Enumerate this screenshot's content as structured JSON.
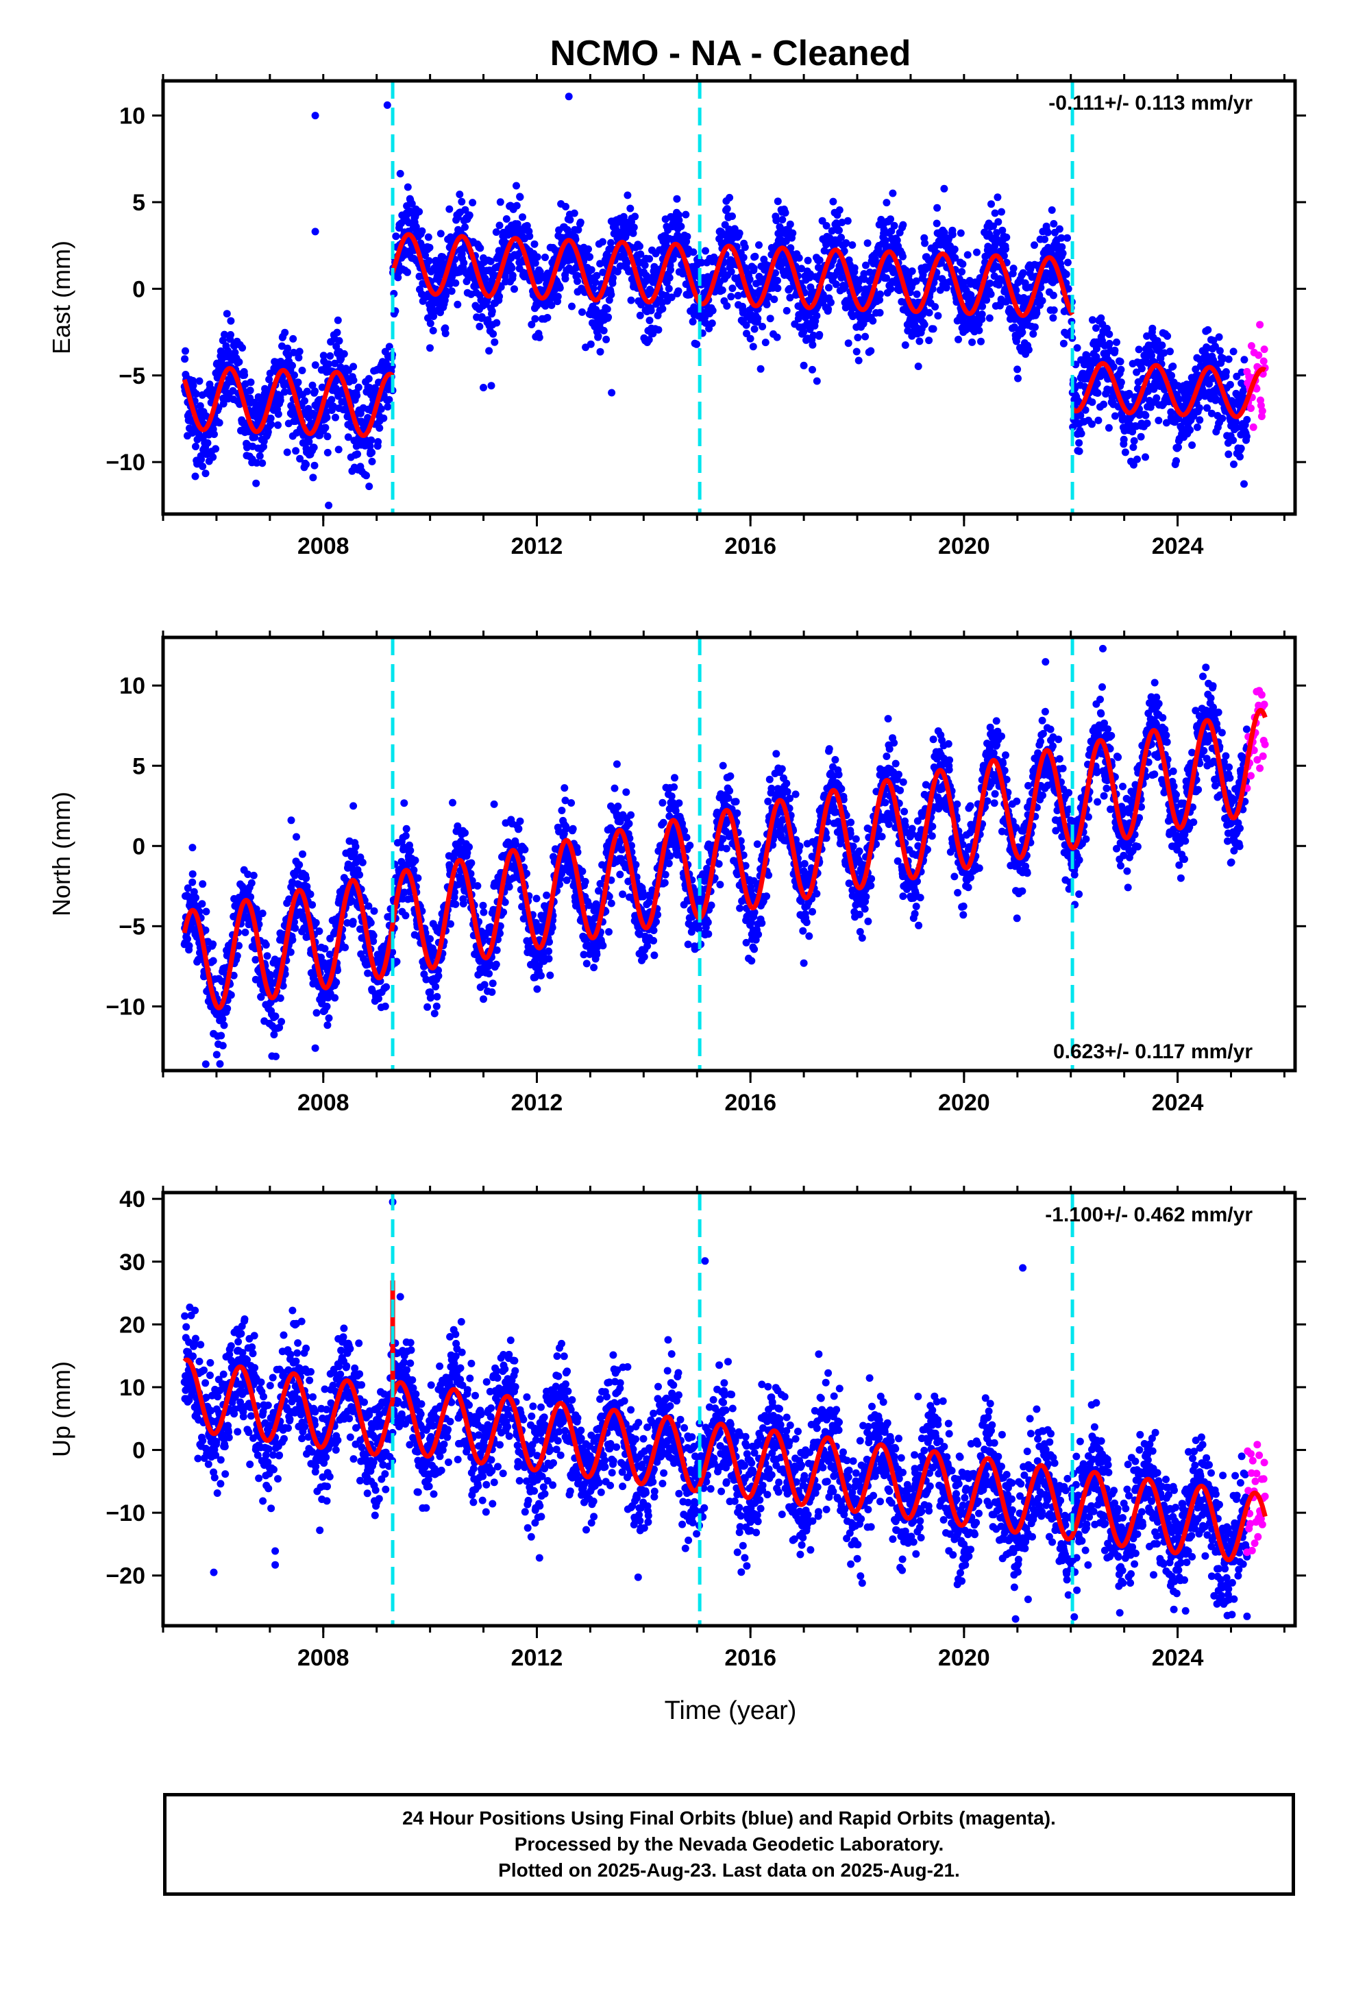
{
  "title": "NCMO  - NA - Cleaned",
  "x_axis_label": "Time (year)",
  "footer": {
    "line1": "24 Hour Positions Using Final Orbits (blue) and Rapid Orbits (magenta).",
    "line2": "Processed by the Nevada Geodetic Laboratory.",
    "line3": "Plotted on 2025-Aug-23. Last data on 2025-Aug-21."
  },
  "colors": {
    "final_orbits": "#0000ff",
    "rapid_orbits": "#ff00ff",
    "model_fit": "#ff0000",
    "step_markers": "#00e5ee"
  },
  "chart_data": [
    {
      "type": "scatter",
      "component": "east",
      "ylabel": "East (mm)",
      "rate_text": "-0.111+/- 0.113 mm/yr",
      "rate_position": "top-right",
      "xlim": [
        2005.0,
        2026.2
      ],
      "ylim": [
        -13,
        12
      ],
      "x_ticks": [
        2008,
        2012,
        2016,
        2020,
        2024
      ],
      "y_ticks": [
        -10,
        -5,
        0,
        5,
        10
      ],
      "step_dates": [
        2009.3,
        2015.05,
        2022.03
      ],
      "data_start": 2005.4,
      "final_end": 2025.3,
      "rapid_end": 2025.64,
      "fit_segments": [
        {
          "start": 2005.4,
          "end": 2009.3,
          "offset": -6.3,
          "amplitude": 1.8,
          "peak": 0.25
        },
        {
          "start": 2009.3,
          "end": 2022.03,
          "offset": 1.9,
          "amplitude": 1.7,
          "peak": 0.6
        },
        {
          "start": 2022.03,
          "end": 2025.64,
          "offset": -3.8,
          "amplitude": 1.4,
          "peak": 0.6
        }
      ],
      "rate_mm_per_yr": -0.111,
      "scatter_sd": 1.3,
      "outliers": [
        [
          2007.85,
          10.0
        ],
        [
          2009.2,
          10.6
        ],
        [
          2012.6,
          11.1
        ],
        [
          2007.85,
          3.3
        ],
        [
          2013.4,
          -6.0
        ],
        [
          2011.0,
          -5.7
        ],
        [
          2016.5,
          -2.8
        ],
        [
          2008.1,
          -12.5
        ]
      ]
    },
    {
      "type": "scatter",
      "component": "north",
      "ylabel": "North (mm)",
      "rate_text": "0.623+/- 0.117 mm/yr",
      "rate_position": "bottom-right",
      "xlim": [
        2005.0,
        2026.2
      ],
      "ylim": [
        -14,
        13
      ],
      "x_ticks": [
        2008,
        2012,
        2016,
        2020,
        2024
      ],
      "y_ticks": [
        -10,
        -5,
        0,
        5,
        10
      ],
      "step_dates": [
        2009.3,
        2015.05,
        2022.03
      ],
      "data_start": 2005.4,
      "final_end": 2025.3,
      "rapid_end": 2025.64,
      "fit_segments": [
        {
          "start": 2005.4,
          "end": 2025.64,
          "offset": -7.3,
          "amplitude": 3.2,
          "peak": 0.55
        }
      ],
      "rate_mm_per_yr": 0.623,
      "scatter_sd": 1.3,
      "outliers": [
        [
          2005.55,
          -0.1
        ],
        [
          2007.4,
          1.6
        ],
        [
          2011.2,
          2.6
        ],
        [
          2013.5,
          5.1
        ],
        [
          2017.0,
          -7.3
        ],
        [
          2007.85,
          -12.6
        ],
        [
          2005.8,
          -13.6
        ],
        [
          2022.6,
          12.3
        ]
      ]
    },
    {
      "type": "scatter",
      "component": "up",
      "ylabel": "Up (mm)",
      "rate_text": "-1.100+/- 0.462 mm/yr",
      "rate_position": "top-right",
      "xlim": [
        2005.0,
        2026.2
      ],
      "ylim": [
        -28,
        41
      ],
      "x_ticks": [
        2008,
        2012,
        2016,
        2020,
        2024
      ],
      "y_ticks": [
        -20,
        -10,
        0,
        10,
        20,
        30,
        40
      ],
      "step_dates": [
        2009.3,
        2015.05,
        2022.03
      ],
      "data_start": 2005.4,
      "final_end": 2025.3,
      "rapid_end": 2025.64,
      "fit_segments": [
        {
          "start": 2005.4,
          "end": 2009.3,
          "offset": 8.8,
          "amplitude": 5.6,
          "peak": 0.45
        },
        {
          "start": 2009.3,
          "end": 2025.64,
          "offset": 9.6,
          "amplitude": 5.6,
          "peak": 0.45
        }
      ],
      "fit_spike": {
        "x": 2009.3,
        "y": 27.0
      },
      "rate_mm_per_yr": -1.1,
      "scatter_sd": 4.5,
      "outliers": [
        [
          2009.3,
          39.5
        ],
        [
          2015.15,
          30.1
        ],
        [
          2021.1,
          29.0
        ],
        [
          2005.95,
          -19.5
        ],
        [
          2007.1,
          -16.1
        ],
        [
          2007.1,
          -18.3
        ],
        [
          2025.3,
          -26.5
        ],
        [
          2021.2,
          -23.8
        ]
      ]
    }
  ]
}
